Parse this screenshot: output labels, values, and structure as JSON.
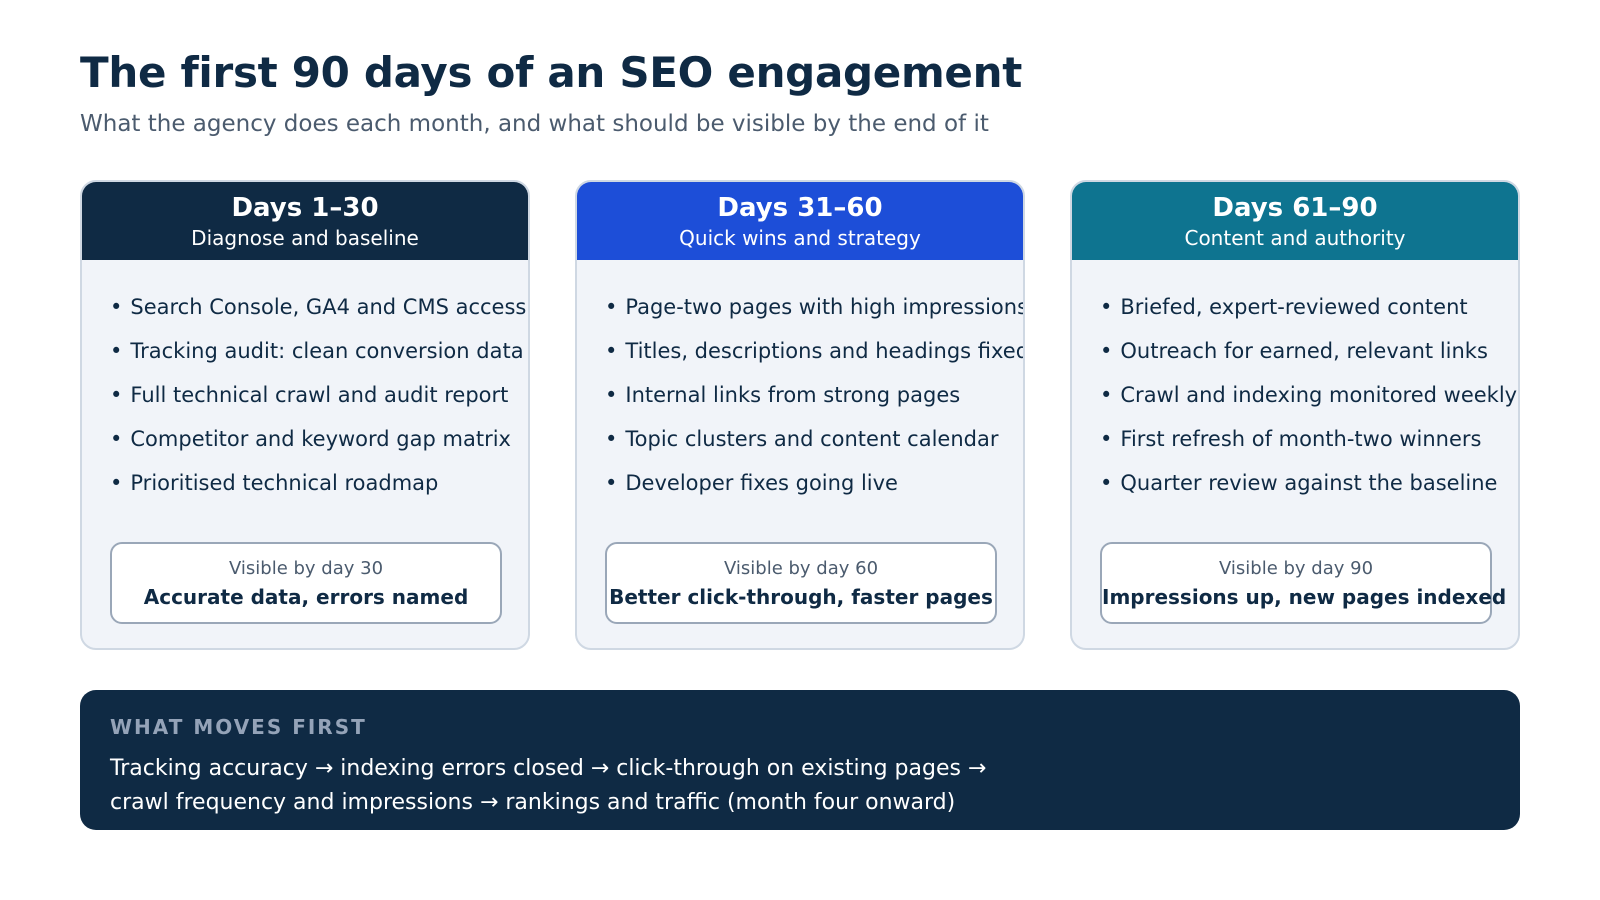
{
  "header": {
    "title": "The first 90 days of an SEO engagement",
    "subtitle": "What the agency does each month, and what should be visible by the end of it"
  },
  "phases": [
    {
      "days": "Days 1–30",
      "name": "Diagnose and baseline",
      "color": "#0f2a44",
      "items": [
        "Search Console, GA4 and CMS access",
        "Tracking audit: clean conversion data",
        "Full technical crawl and audit report",
        "Competitor and keyword gap matrix",
        "Prioritised technical roadmap"
      ],
      "outcome_label": "Visible by day 30",
      "outcome": "Accurate data, errors named"
    },
    {
      "days": "Days 31–60",
      "name": "Quick wins and strategy",
      "color": "#1d4ed8",
      "items": [
        "Page-two pages with high impressions",
        "Titles, descriptions and headings fixed",
        "Internal links from strong pages",
        "Topic clusters and content calendar",
        "Developer fixes going live"
      ],
      "outcome_label": "Visible by day 60",
      "outcome": "Better click-through, faster pages"
    },
    {
      "days": "Days 61–90",
      "name": "Content and authority",
      "color": "#0e7490",
      "items": [
        "Briefed, expert-reviewed content",
        "Outreach for earned, relevant links",
        "Crawl and indexing monitored weekly",
        "First refresh of month-two winners",
        "Quarter review against the baseline"
      ],
      "outcome_label": "Visible by day 90",
      "outcome": "Impressions up, new pages indexed"
    }
  ],
  "summary": {
    "label": "WHAT MOVES FIRST",
    "line1": "Tracking accuracy → indexing errors closed → click-through on existing pages →",
    "line2": "crawl frequency and impressions → rankings and traffic (month four onward)"
  }
}
